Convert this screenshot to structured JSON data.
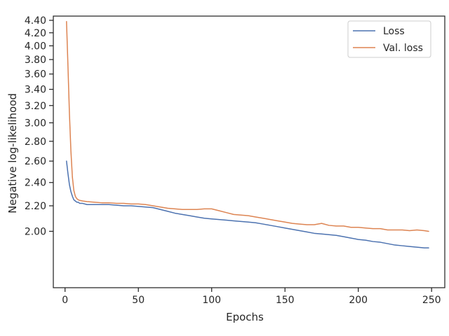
{
  "chart_data": {
    "type": "line",
    "title": "",
    "xlabel": "Epochs",
    "ylabel": "Negative log-likelihood",
    "xlim": [
      -8,
      259
    ],
    "ylim": [
      1.62,
      4.47
    ],
    "y_scale": "log",
    "grid": false,
    "legend_position": "top-right",
    "x_ticks": [
      0,
      50,
      100,
      150,
      200,
      250
    ],
    "x_tick_labels": [
      "0",
      "50",
      "100",
      "150",
      "200",
      "250"
    ],
    "y_ticks": [
      2.0,
      2.2,
      2.4,
      2.6,
      2.8,
      3.0,
      3.2,
      3.4,
      3.6,
      3.8,
      4.0,
      4.2,
      4.4
    ],
    "y_tick_labels": [
      "2.00",
      "2.20",
      "2.40",
      "2.60",
      "2.80",
      "3.00",
      "3.20",
      "3.40",
      "3.60",
      "3.80",
      "4.00",
      "4.20",
      "4.40"
    ],
    "series": [
      {
        "name": "Loss",
        "color": "#4c72b0",
        "x": [
          1,
          2,
          3,
          4,
          5,
          6,
          7,
          8,
          9,
          10,
          12,
          15,
          20,
          25,
          30,
          35,
          40,
          45,
          50,
          55,
          60,
          65,
          70,
          75,
          80,
          85,
          90,
          95,
          100,
          105,
          110,
          115,
          120,
          125,
          130,
          135,
          140,
          145,
          150,
          155,
          160,
          165,
          170,
          175,
          180,
          185,
          190,
          195,
          200,
          205,
          210,
          215,
          220,
          225,
          230,
          235,
          240,
          245,
          248
        ],
        "y": [
          2.6,
          2.48,
          2.38,
          2.32,
          2.28,
          2.25,
          2.24,
          2.23,
          2.23,
          2.22,
          2.22,
          2.21,
          2.21,
          2.21,
          2.21,
          2.205,
          2.2,
          2.2,
          2.195,
          2.19,
          2.185,
          2.17,
          2.155,
          2.14,
          2.13,
          2.12,
          2.11,
          2.1,
          2.095,
          2.09,
          2.085,
          2.08,
          2.075,
          2.07,
          2.065,
          2.055,
          2.045,
          2.035,
          2.025,
          2.015,
          2.005,
          1.995,
          1.985,
          1.98,
          1.975,
          1.97,
          1.96,
          1.95,
          1.94,
          1.935,
          1.925,
          1.92,
          1.91,
          1.9,
          1.895,
          1.89,
          1.885,
          1.88,
          1.88
        ]
      },
      {
        "name": "Val. loss",
        "color": "#dd8452",
        "x": [
          1,
          2,
          3,
          4,
          5,
          6,
          7,
          8,
          9,
          10,
          12,
          15,
          20,
          25,
          30,
          35,
          40,
          45,
          50,
          55,
          60,
          65,
          70,
          75,
          80,
          85,
          90,
          95,
          100,
          105,
          110,
          115,
          120,
          125,
          130,
          135,
          140,
          145,
          150,
          155,
          160,
          165,
          170,
          175,
          180,
          185,
          190,
          195,
          200,
          205,
          210,
          215,
          220,
          225,
          230,
          235,
          240,
          245,
          248
        ],
        "y": [
          4.38,
          3.7,
          3.1,
          2.7,
          2.45,
          2.33,
          2.28,
          2.26,
          2.25,
          2.245,
          2.24,
          2.235,
          2.23,
          2.225,
          2.225,
          2.22,
          2.22,
          2.215,
          2.215,
          2.21,
          2.2,
          2.19,
          2.18,
          2.175,
          2.17,
          2.17,
          2.17,
          2.175,
          2.175,
          2.16,
          2.145,
          2.13,
          2.125,
          2.12,
          2.11,
          2.1,
          2.09,
          2.08,
          2.07,
          2.06,
          2.055,
          2.05,
          2.05,
          2.06,
          2.045,
          2.04,
          2.04,
          2.03,
          2.03,
          2.025,
          2.02,
          2.02,
          2.01,
          2.01,
          2.01,
          2.005,
          2.01,
          2.005,
          2.0
        ]
      }
    ]
  }
}
